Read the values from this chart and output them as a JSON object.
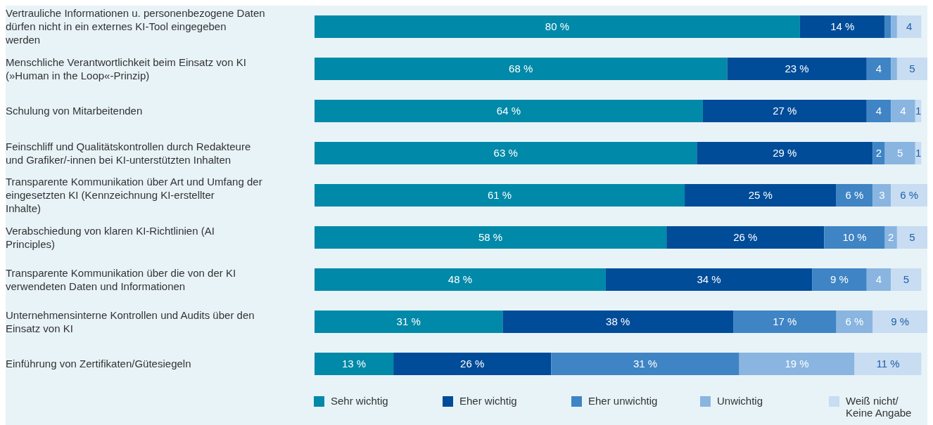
{
  "chart_data": {
    "type": "bar",
    "orientation": "horizontal",
    "stacked": true,
    "legend": "bottom",
    "categories": [
      "Vertrauliche Informationen u. personenbezogene Daten dürfen nicht in ein externes KI-Tool eingegeben werden",
      "Menschliche Verantwortlichkeit beim Einsatz von KI (»Human in the Loop«-Prinzip)",
      "Schulung von Mitarbeitenden",
      "Feinschliff und Qualitätskontrollen durch Redakteure und Grafiker/-innen bei KI-unterstützten Inhalten",
      "Transparente Kommunikation über Art und Umfang der eingesetzten KI (Kennzeichnung KI-erstellter Inhalte)",
      "Verabschiedung von klaren KI-Richtlinien (AI Principles)",
      "Transparente Kommunikation über die von der KI verwendeten Daten und Informationen",
      "Unternehmensinterne Kontrollen und Audits über den Einsatz von KI",
      "Einführung von Zertifikaten/Gütesiegeln"
    ],
    "series": [
      {
        "name": "Sehr wichtig",
        "color": "#0089a8",
        "values": [
          80,
          68,
          64,
          63,
          61,
          58,
          48,
          31,
          13
        ],
        "value_labels": [
          "80 %",
          "68 %",
          "64 %",
          "63 %",
          "61 %",
          "58 %",
          "48 %",
          "31 %",
          "13 %"
        ]
      },
      {
        "name": "Eher wichtig",
        "color": "#004c99",
        "values": [
          14,
          23,
          27,
          29,
          25,
          26,
          34,
          38,
          26
        ],
        "value_labels": [
          "14 %",
          "23 %",
          "27 %",
          "29 %",
          "25 %",
          "26 %",
          "34 %",
          "38 %",
          "26 %"
        ]
      },
      {
        "name": "Eher unwichtig",
        "color": "#3f84c4",
        "values": [
          1,
          4,
          4,
          2,
          6,
          10,
          9,
          17,
          31
        ],
        "value_labels": [
          null,
          "4",
          "4",
          "2",
          "6 %",
          "10 %",
          "9 %",
          "17 %",
          "31 %"
        ]
      },
      {
        "name": "Unwichtig",
        "color": "#89b5e0",
        "values": [
          1,
          1,
          4,
          5,
          3,
          2,
          4,
          6,
          19
        ],
        "value_labels": [
          null,
          null,
          "4",
          "5",
          "3",
          "2",
          "4",
          "6 %",
          "19 %"
        ]
      },
      {
        "name": "Weiß nicht/ Keine Angabe",
        "color": "#c8dcf2",
        "values": [
          4,
          5,
          1,
          1,
          6,
          5,
          5,
          9,
          11
        ],
        "value_labels": [
          "4",
          "5",
          "1",
          "1",
          "6 %",
          "5",
          "5",
          "9 %",
          "11 %"
        ]
      }
    ]
  }
}
